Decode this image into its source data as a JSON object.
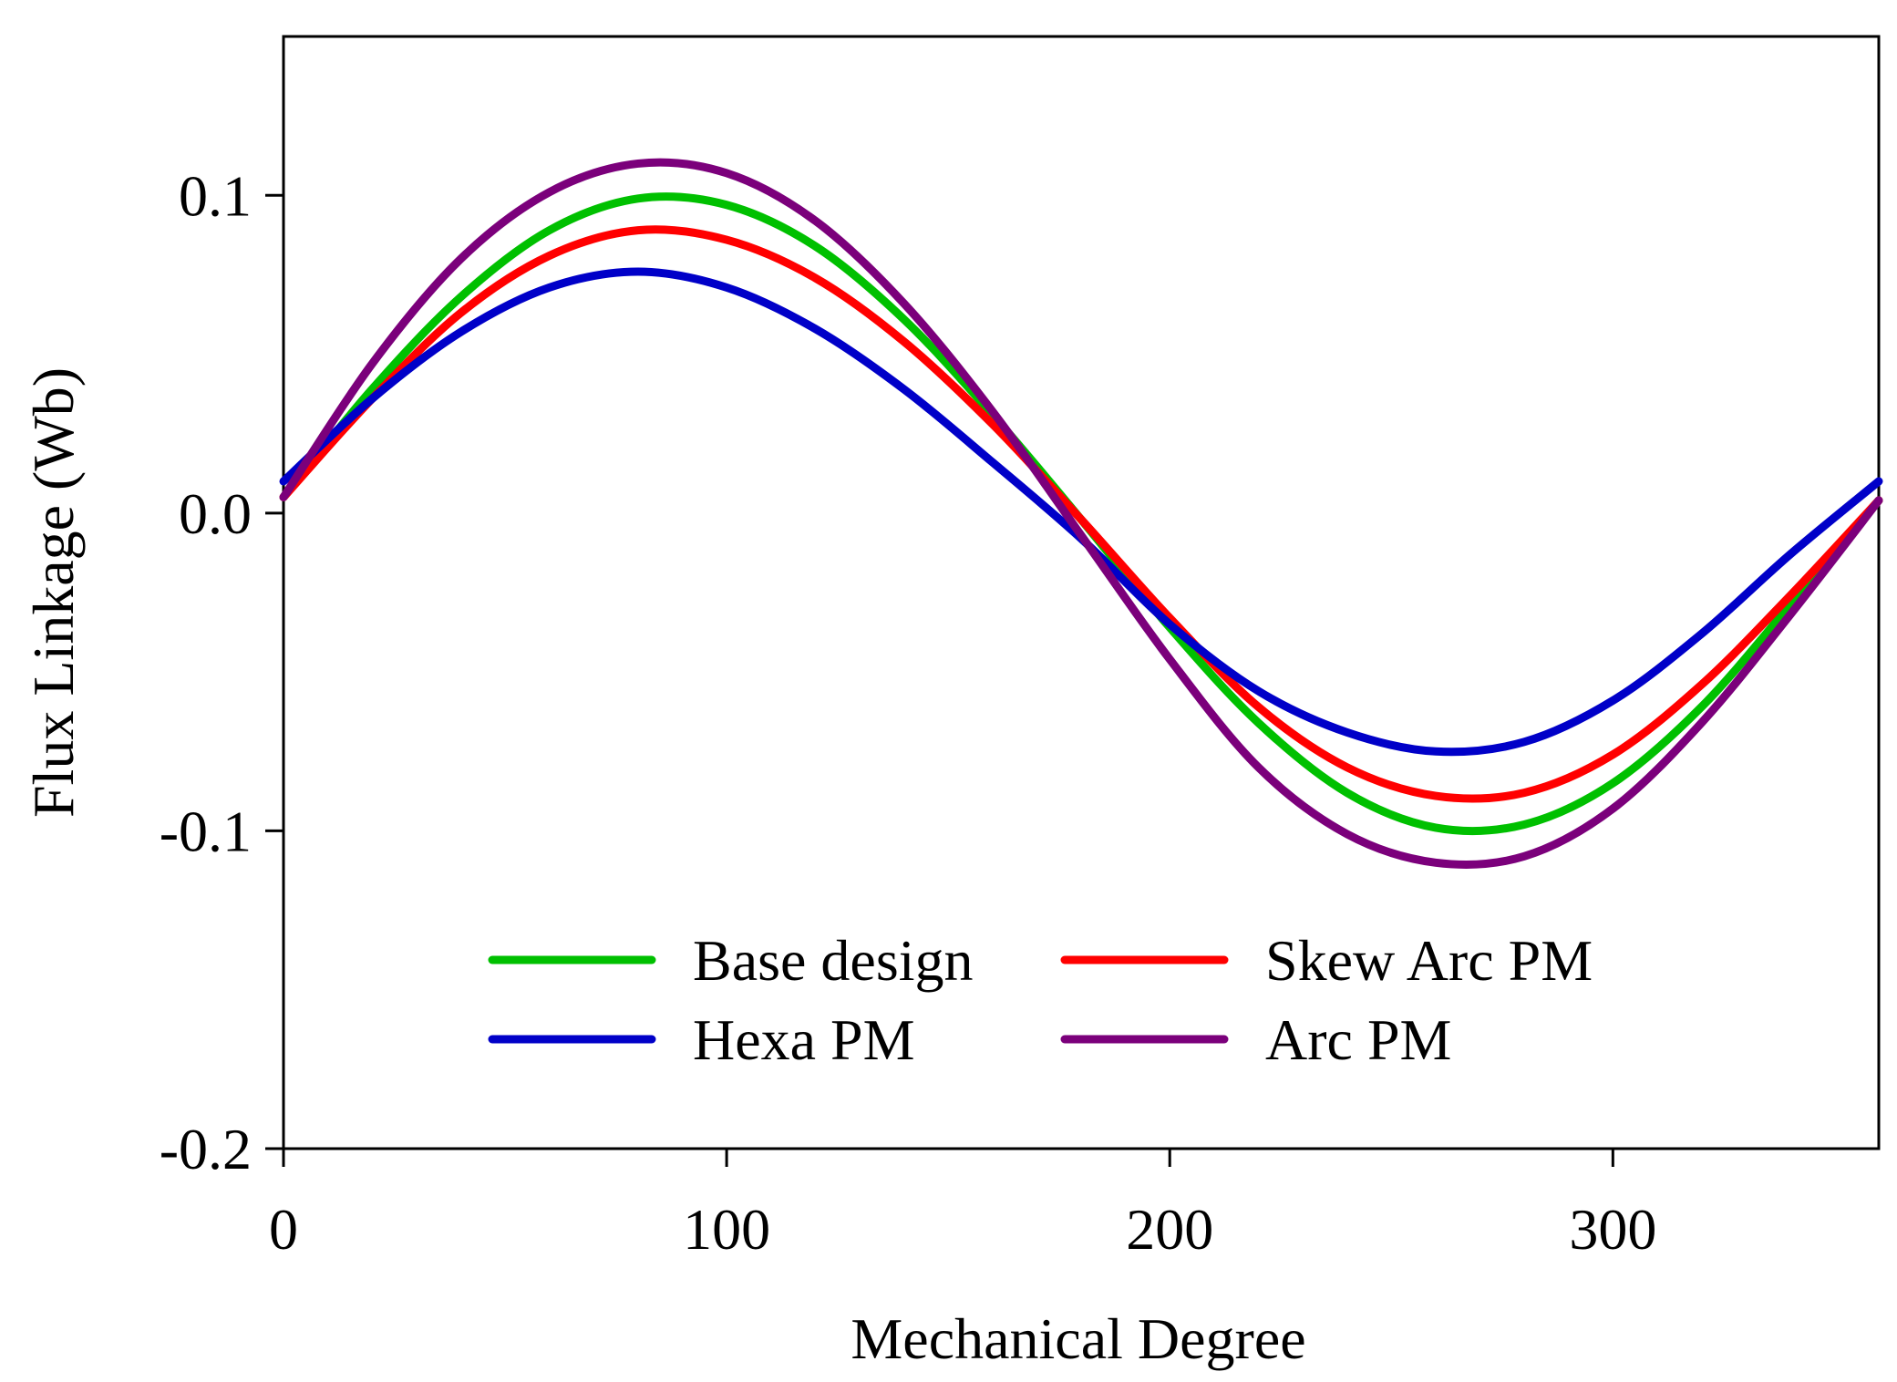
{
  "chart_data": {
    "type": "line",
    "title": "",
    "xlabel": "Mechanical Degree",
    "ylabel": "Flux Linkage (Wb)",
    "xlim": [
      0,
      360
    ],
    "ylim": [
      -0.2,
      0.15
    ],
    "xticks": [
      0,
      100,
      200,
      300
    ],
    "yticks": [
      -0.2,
      -0.1,
      0.0,
      0.1
    ],
    "xtick_labels": [
      "0",
      "100",
      "200",
      "300"
    ],
    "ytick_labels": [
      "-0.2",
      "-0.1",
      "0.0",
      "0.1"
    ],
    "grid": false,
    "legend_position": "bottom-center",
    "x": [
      0,
      20,
      40,
      60,
      80,
      100,
      120,
      140,
      160,
      180,
      200,
      220,
      240,
      260,
      280,
      300,
      320,
      340,
      360
    ],
    "series": [
      {
        "name": "Base design",
        "color": "#00c000",
        "values": [
          0.005,
          0.039,
          0.068,
          0.089,
          0.099,
          0.097,
          0.084,
          0.061,
          0.031,
          -0.002,
          -0.036,
          -0.066,
          -0.088,
          -0.099,
          -0.098,
          -0.085,
          -0.061,
          -0.029,
          0.004
        ]
      },
      {
        "name": "Skew Arc PM",
        "color": "#ff0000",
        "values": [
          0.005,
          0.036,
          0.063,
          0.081,
          0.089,
          0.086,
          0.074,
          0.054,
          0.028,
          -0.002,
          -0.033,
          -0.061,
          -0.08,
          -0.089,
          -0.088,
          -0.076,
          -0.054,
          -0.026,
          0.004
        ]
      },
      {
        "name": "Hexa PM",
        "color": "#0000c8",
        "values": [
          0.01,
          0.036,
          0.057,
          0.071,
          0.076,
          0.071,
          0.058,
          0.039,
          0.016,
          -0.008,
          -0.035,
          -0.056,
          -0.069,
          -0.075,
          -0.072,
          -0.059,
          -0.038,
          -0.013,
          0.01
        ]
      },
      {
        "name": "Arc PM",
        "color": "#7b007b",
        "values": [
          0.005,
          0.047,
          0.08,
          0.101,
          0.11,
          0.107,
          0.092,
          0.066,
          0.032,
          -0.007,
          -0.046,
          -0.08,
          -0.101,
          -0.11,
          -0.108,
          -0.093,
          -0.066,
          -0.032,
          0.004
        ]
      }
    ]
  }
}
